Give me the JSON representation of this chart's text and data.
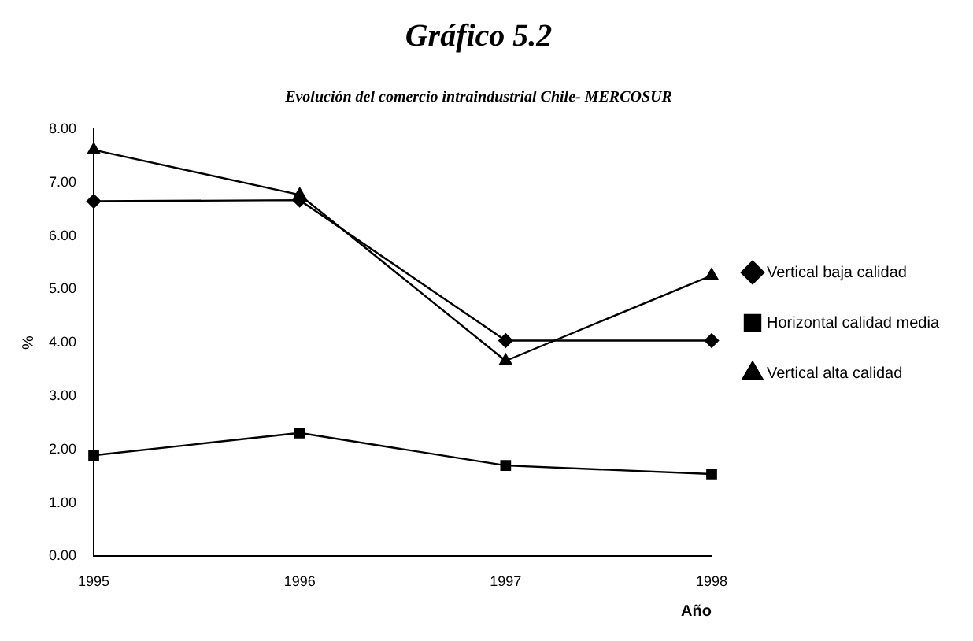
{
  "chart_data": {
    "type": "line",
    "title": "Gráfico 5.2",
    "subtitle": "Evolución del comercio intraindustrial Chile- MERCOSUR",
    "xlabel": "Año",
    "ylabel": "%",
    "categories": [
      "1995",
      "1996",
      "1997",
      "1998"
    ],
    "series": [
      {
        "name": "Vertical baja calidad",
        "color": "#000000",
        "marker": "diamond",
        "values": [
          6.65,
          6.67,
          4.04,
          4.04
        ]
      },
      {
        "name": "Horizontal calidad media",
        "color": "#000000",
        "marker": "square",
        "values": [
          1.89,
          2.31,
          1.7,
          1.54
        ]
      },
      {
        "name": "Vertical alta calidad",
        "color": "#000000",
        "marker": "triangle",
        "values": [
          7.61,
          6.77,
          3.66,
          5.26
        ]
      }
    ],
    "ylim": [
      0,
      8
    ],
    "yticks": [
      {
        "value": 0,
        "label": "0.00"
      },
      {
        "value": 1,
        "label": "1.00"
      },
      {
        "value": 2,
        "label": "2.00"
      },
      {
        "value": 3,
        "label": "3.00"
      },
      {
        "value": 4,
        "label": "4.00"
      },
      {
        "value": 5,
        "label": "5.00"
      },
      {
        "value": 6,
        "label": "6.00"
      },
      {
        "value": 7,
        "label": "7.00"
      },
      {
        "value": 8,
        "label": "8.00"
      }
    ],
    "grid": false,
    "legend": "right",
    "line_style": "solid"
  }
}
